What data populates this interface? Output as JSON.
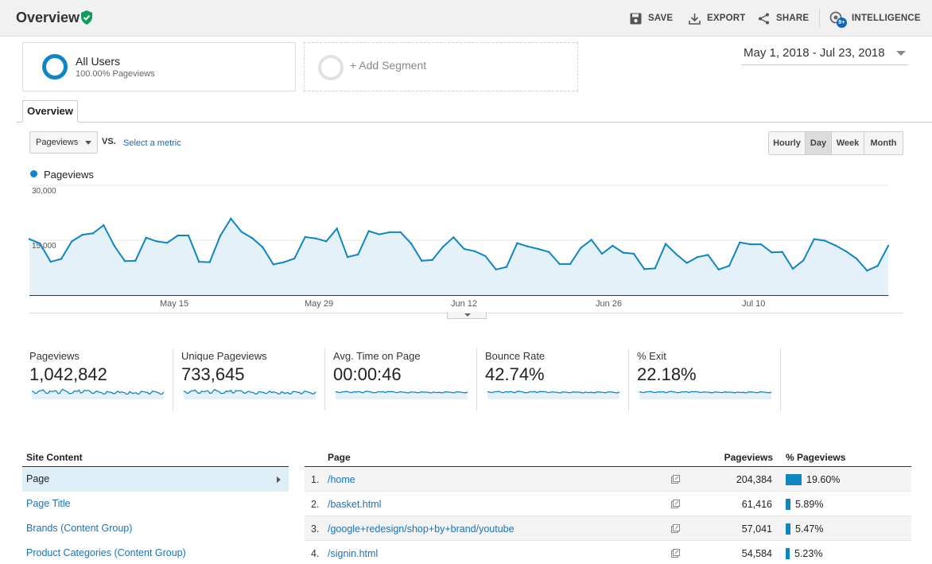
{
  "header": {
    "title": "Overview",
    "actions": {
      "save": "SAVE",
      "export": "EXPORT",
      "share": "SHARE",
      "intelligence": "INTELLIGENCE",
      "intelligence_badge": "9+"
    }
  },
  "segments": {
    "all_users": {
      "name": "All Users",
      "sub": "100.00% Pageviews"
    },
    "add_segment": "+ Add Segment"
  },
  "date_range": "May 1, 2018 - Jul 23, 2018",
  "tabs": {
    "overview": "Overview"
  },
  "metric_controls": {
    "selected_metric": "Pageviews",
    "vs": "VS.",
    "select_metric": "Select a metric",
    "granularity": [
      "Hourly",
      "Day",
      "Week",
      "Month"
    ],
    "active_granularity": "Day"
  },
  "colors": {
    "accent": "#0f86c2",
    "fill": "#e4f1f8",
    "verified": "#0f9d58",
    "link": "#1a73b8"
  },
  "chart_data": {
    "type": "area",
    "legend": "Pageviews",
    "y_ticks": [
      "30,000",
      "15,000"
    ],
    "ylim": [
      0,
      30000
    ],
    "x_ticks": [
      "May 15",
      "May 29",
      "Jun 12",
      "Jun 26",
      "Jul 10"
    ],
    "x_range": [
      "2018-05-01",
      "2018-07-23"
    ],
    "series": [
      {
        "name": "Pageviews",
        "values": [
          15300,
          14100,
          9100,
          9900,
          14700,
          16500,
          16900,
          19100,
          13500,
          9300,
          9400,
          15700,
          14700,
          14300,
          16300,
          16300,
          9100,
          9000,
          16200,
          20900,
          17300,
          15600,
          13100,
          8400,
          9000,
          10000,
          15900,
          15500,
          14700,
          18200,
          10400,
          11100,
          17500,
          16600,
          17200,
          17200,
          14100,
          9400,
          9600,
          13200,
          15800,
          12600,
          12000,
          10700,
          7000,
          7700,
          14200,
          13300,
          12600,
          11800,
          8500,
          8500,
          12900,
          15100,
          11300,
          13500,
          11600,
          11300,
          7100,
          7300,
          14000,
          11200,
          8800,
          10400,
          11000,
          7000,
          8000,
          14400,
          13900,
          13900,
          11700,
          11800,
          7200,
          9500,
          15300,
          14900,
          13600,
          12000,
          10000,
          6700,
          8000,
          13500
        ]
      }
    ]
  },
  "scorecards": [
    {
      "label": "Pageviews",
      "value": "1,042,842"
    },
    {
      "label": "Unique Pageviews",
      "value": "733,645"
    },
    {
      "label": "Avg. Time on Page",
      "value": "00:00:46"
    },
    {
      "label": "Bounce Rate",
      "value": "42.74%"
    },
    {
      "label": "% Exit",
      "value": "22.18%"
    }
  ],
  "site_content": {
    "header": "Site Content",
    "items": [
      "Page",
      "Page Title",
      "Brands (Content Group)",
      "Product Categories (Content Group)"
    ]
  },
  "page_table": {
    "headers": {
      "page": "Page",
      "pageviews": "Pageviews",
      "pct": "% Pageviews"
    },
    "rows": [
      {
        "rank": "1.",
        "page": "/home",
        "pageviews": "204,384",
        "pct": "19.60%",
        "share": 19.6
      },
      {
        "rank": "2.",
        "page": "/basket.html",
        "pageviews": "61,416",
        "pct": "5.89%",
        "share": 5.89
      },
      {
        "rank": "3.",
        "page": "/google+redesign/shop+by+brand/youtube",
        "pageviews": "57,041",
        "pct": "5.47%",
        "share": 5.47
      },
      {
        "rank": "4.",
        "page": "/signin.html",
        "pageviews": "54,584",
        "pct": "5.23%",
        "share": 5.23
      }
    ]
  }
}
